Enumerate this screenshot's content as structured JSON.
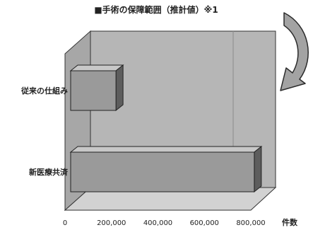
{
  "chart_data": {
    "type": "bar",
    "orientation": "horizontal",
    "style": "3d",
    "title": "■手術の保障範囲（推計値）※1",
    "categories": [
      "従来の仕組み",
      "新医療共済"
    ],
    "values": [
      190000,
      770000
    ],
    "xlim": [
      0,
      800000
    ],
    "xticks": [
      "0",
      "200,000",
      "400,000",
      "600,000",
      "800,000"
    ],
    "xlabel": "件数",
    "ylabel": "",
    "grid": false,
    "legend": "none",
    "colors": {
      "bar_front": "#9a9a9a",
      "bar_top": "#c8c8c8",
      "bar_side": "#5d5d5d",
      "wall": "#b6b6b6",
      "floor": "#d2d2d2",
      "arrow": "#9a9a9a"
    }
  },
  "decor": {
    "arrow_icon": "curved-arrow-icon"
  }
}
